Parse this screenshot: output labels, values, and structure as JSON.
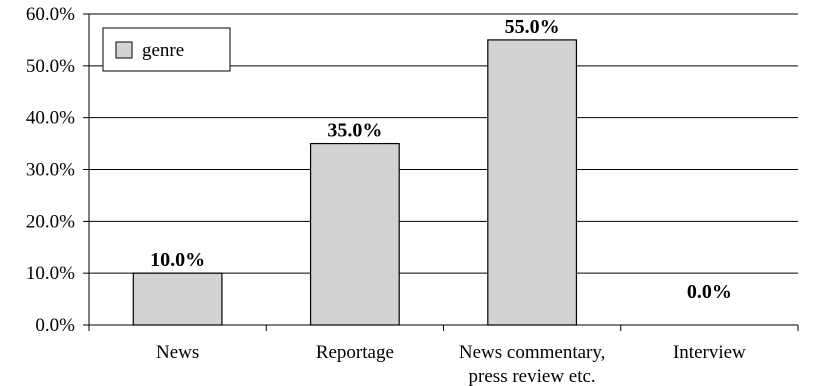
{
  "chart_data": {
    "type": "bar",
    "categories": [
      [
        "News"
      ],
      [
        "Reportage"
      ],
      [
        "News commentary,",
        "press review etc."
      ],
      [
        "Interview"
      ]
    ],
    "series": [
      {
        "name": "genre",
        "values": [
          10.0,
          35.0,
          55.0,
          0.0
        ],
        "color": "#d3d3d3"
      }
    ],
    "data_labels": [
      "10.0%",
      "35.0%",
      "55.0%",
      "0.0%"
    ],
    "y_ticks": [
      "0.0%",
      "10.0%",
      "20.0%",
      "30.0%",
      "40.0%",
      "50.0%",
      "60.0%"
    ],
    "ylim": [
      0,
      60
    ],
    "grid": true,
    "legend_position": "top-left",
    "title": "",
    "xlabel": "",
    "ylabel": ""
  }
}
